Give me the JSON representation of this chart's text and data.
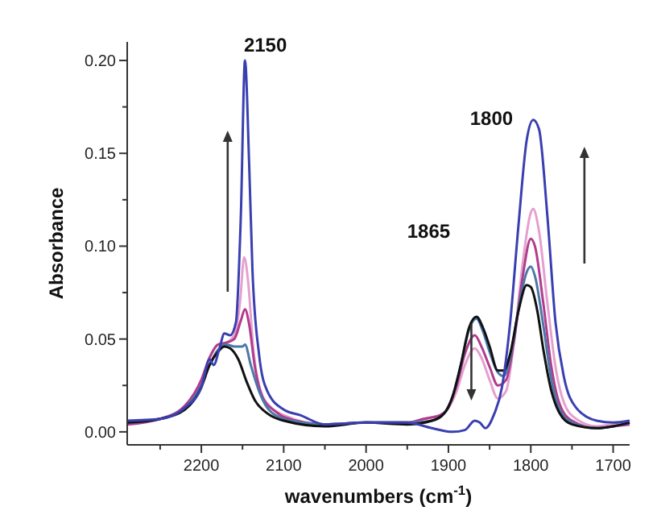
{
  "chart_data": {
    "type": "line",
    "xlabel": "wavenumbers (cm$^{-1}$)",
    "ylabel": "Absorbance",
    "xlim": [
      2290,
      1680
    ],
    "ylim": [
      -0.007,
      0.21
    ],
    "xticks": [
      {
        "value": 2250,
        "label": null
      },
      2200,
      {
        "value": 2150,
        "label": null
      },
      2100,
      {
        "value": 2050,
        "label": null
      },
      2000,
      {
        "value": 1950,
        "label": null
      },
      1900,
      {
        "value": 1850,
        "label": null
      },
      1800,
      {
        "value": 1750,
        "label": null
      },
      1700
    ],
    "yticks": [
      {
        "value": 0,
        "label": "0.00"
      },
      {
        "value": 0.025,
        "label": null
      },
      {
        "value": 0.05,
        "label": "0.05"
      },
      {
        "value": 0.075,
        "label": null
      },
      {
        "value": 0.1,
        "label": "0.10"
      },
      {
        "value": 0.125,
        "label": null
      },
      {
        "value": 0.15,
        "label": "0.15"
      },
      {
        "value": 0.175,
        "label": null
      },
      {
        "value": 0.2,
        "label": "0.20"
      }
    ],
    "grid": false,
    "marker": "none",
    "line_style": "solid",
    "annotations": [
      "2150",
      "1865",
      "1800"
    ],
    "series": [
      {
        "color": "#e5a0cf",
        "x": [
          2290,
          2250,
          2220,
          2200,
          2190,
          2180,
          2170,
          2160,
          2153,
          2148,
          2143,
          2137,
          2128,
          2115,
          2100,
          2050,
          2000,
          1950,
          1930,
          1910,
          1900,
          1890,
          1880,
          1868,
          1860,
          1850,
          1840,
          1830,
          1820,
          1810,
          1800,
          1797,
          1790,
          1780,
          1770,
          1760,
          1745,
          1720,
          1700,
          1680
        ],
        "values": [
          0.005,
          0.007,
          0.014,
          0.028,
          0.04,
          0.047,
          0.048,
          0.052,
          0.07,
          0.094,
          0.08,
          0.045,
          0.022,
          0.013,
          0.009,
          0.004,
          0.005,
          0.005,
          0.007,
          0.009,
          0.013,
          0.022,
          0.036,
          0.045,
          0.04,
          0.028,
          0.018,
          0.022,
          0.05,
          0.09,
          0.118,
          0.12,
          0.108,
          0.07,
          0.035,
          0.016,
          0.007,
          0.003,
          0.004,
          0.005
        ]
      },
      {
        "color": "#b03c8c",
        "x": [
          2290,
          2250,
          2220,
          2200,
          2190,
          2180,
          2170,
          2160,
          2152,
          2147,
          2142,
          2135,
          2125,
          2110,
          2100,
          2050,
          2000,
          1950,
          1930,
          1910,
          1900,
          1890,
          1880,
          1868,
          1860,
          1850,
          1840,
          1830,
          1820,
          1810,
          1800,
          1795,
          1785,
          1775,
          1765,
          1750,
          1720,
          1700,
          1680
        ],
        "values": [
          0.004,
          0.007,
          0.014,
          0.028,
          0.04,
          0.047,
          0.048,
          0.05,
          0.06,
          0.066,
          0.058,
          0.035,
          0.018,
          0.011,
          0.008,
          0.004,
          0.005,
          0.005,
          0.007,
          0.009,
          0.013,
          0.025,
          0.042,
          0.052,
          0.046,
          0.035,
          0.025,
          0.028,
          0.05,
          0.083,
          0.104,
          0.1,
          0.07,
          0.035,
          0.015,
          0.006,
          0.002,
          0.003,
          0.004
        ]
      },
      {
        "color": "#4a78a8",
        "x": [
          2290,
          2250,
          2220,
          2200,
          2190,
          2180,
          2170,
          2160,
          2150,
          2147,
          2140,
          2130,
          2120,
          2100,
          2050,
          2000,
          1950,
          1920,
          1905,
          1895,
          1885,
          1875,
          1866,
          1858,
          1850,
          1840,
          1833,
          1825,
          1815,
          1805,
          1800,
          1795,
          1785,
          1775,
          1765,
          1750,
          1720,
          1700,
          1680
        ],
        "values": [
          0.005,
          0.007,
          0.013,
          0.025,
          0.036,
          0.044,
          0.047,
          0.046,
          0.046,
          0.047,
          0.036,
          0.022,
          0.013,
          0.007,
          0.004,
          0.005,
          0.005,
          0.006,
          0.01,
          0.019,
          0.036,
          0.055,
          0.061,
          0.054,
          0.043,
          0.032,
          0.03,
          0.04,
          0.066,
          0.086,
          0.089,
          0.084,
          0.058,
          0.028,
          0.012,
          0.005,
          0.002,
          0.003,
          0.005
        ]
      },
      {
        "color": "#111111",
        "x": [
          2290,
          2250,
          2220,
          2200,
          2190,
          2180,
          2172,
          2165,
          2155,
          2145,
          2135,
          2120,
          2100,
          2050,
          2000,
          1950,
          1920,
          1905,
          1895,
          1885,
          1875,
          1866,
          1858,
          1850,
          1840,
          1833,
          1825,
          1815,
          1805,
          1800,
          1792,
          1785,
          1775,
          1765,
          1750,
          1720,
          1700,
          1680
        ],
        "values": [
          0.005,
          0.007,
          0.012,
          0.024,
          0.036,
          0.043,
          0.046,
          0.045,
          0.039,
          0.027,
          0.017,
          0.01,
          0.006,
          0.003,
          0.005,
          0.004,
          0.006,
          0.01,
          0.019,
          0.036,
          0.056,
          0.062,
          0.056,
          0.046,
          0.033,
          0.033,
          0.042,
          0.065,
          0.079,
          0.078,
          0.065,
          0.045,
          0.022,
          0.01,
          0.004,
          0.002,
          0.003,
          0.005
        ]
      },
      {
        "color": "#3a3fb0",
        "x": [
          2290,
          2250,
          2220,
          2200,
          2190,
          2185,
          2178,
          2172,
          2165,
          2158,
          2152,
          2147,
          2142,
          2138,
          2130,
          2120,
          2100,
          2080,
          2050,
          2000,
          1950,
          1920,
          1895,
          1880,
          1868,
          1862,
          1855,
          1845,
          1835,
          1825,
          1815,
          1805,
          1797,
          1790,
          1780,
          1770,
          1760,
          1745,
          1720,
          1700,
          1680
        ],
        "values": [
          0.006,
          0.007,
          0.013,
          0.024,
          0.039,
          0.036,
          0.045,
          0.053,
          0.052,
          0.059,
          0.117,
          0.2,
          0.145,
          0.088,
          0.042,
          0.022,
          0.012,
          0.009,
          0.004,
          0.005,
          0.005,
          0.002,
          0,
          0.001,
          0.006,
          0.005,
          0.002,
          0.009,
          0.024,
          0.059,
          0.111,
          0.157,
          0.168,
          0.163,
          0.117,
          0.059,
          0.03,
          0.013,
          0.006,
          0.005,
          0.006
        ]
      }
    ]
  }
}
